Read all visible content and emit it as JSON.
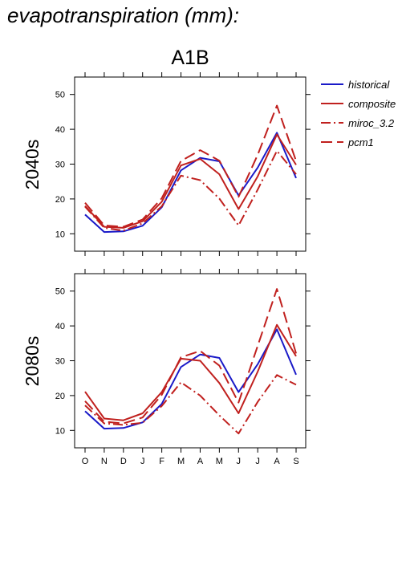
{
  "title": "evapotranspiration (mm):",
  "chart_data": {
    "type": "line",
    "scenario": "A1B",
    "categories": [
      "O",
      "N",
      "D",
      "J",
      "F",
      "M",
      "A",
      "M",
      "J",
      "J",
      "A",
      "S"
    ],
    "ylim": [
      5,
      55
    ],
    "yticks": [
      10,
      20,
      30,
      40,
      50
    ],
    "legend_position": "top-right",
    "series_styles": [
      {
        "name": "historical",
        "color": "#1a1ac8",
        "dash": "none"
      },
      {
        "name": "composite",
        "color": "#c0201e",
        "dash": "none"
      },
      {
        "name": "miroc_3.2",
        "color": "#c0201e",
        "dash": "12,4,2,4"
      },
      {
        "name": "pcm1",
        "color": "#c0201e",
        "dash": "14,6"
      }
    ],
    "panels": [
      {
        "label": "2040s",
        "series": [
          {
            "name": "historical",
            "values": [
              15.5,
              10.5,
              10.7,
              12.3,
              17.6,
              28.2,
              31.8,
              30.8,
              21.0,
              29.0,
              39.0,
              26.0
            ]
          },
          {
            "name": "composite",
            "values": [
              18.0,
              12.0,
              11.7,
              13.6,
              19.2,
              29.6,
              31.5,
              27.1,
              17.1,
              26.5,
              38.5,
              29.8
            ]
          },
          {
            "name": "miroc_3.2",
            "values": [
              17.8,
              11.7,
              10.9,
              13.0,
              17.9,
              26.7,
              25.4,
              20.1,
              12.4,
              22.7,
              33.8,
              27.1
            ]
          },
          {
            "name": "pcm1",
            "values": [
              18.9,
              12.4,
              12.0,
              14.1,
              20.2,
              30.9,
              34.0,
              31.0,
              20.6,
              32.7,
              46.8,
              30.9
            ]
          }
        ]
      },
      {
        "label": "2080s",
        "series": [
          {
            "name": "historical",
            "values": [
              15.5,
              10.5,
              10.7,
              12.3,
              17.6,
              28.2,
              31.8,
              30.8,
              21.0,
              29.0,
              39.0,
              26.0
            ]
          },
          {
            "name": "composite",
            "values": [
              21.1,
              13.4,
              12.9,
              14.9,
              21.0,
              30.6,
              30.0,
              23.6,
              14.9,
              26.9,
              40.3,
              31.3
            ]
          },
          {
            "name": "miroc_3.2",
            "values": [
              17.2,
              12.0,
              11.6,
              12.2,
              17.0,
              23.8,
              20.0,
              14.3,
              9.1,
              18.2,
              25.9,
              23.1
            ]
          },
          {
            "name": "pcm1",
            "values": [
              18.4,
              12.5,
              12.0,
              13.7,
              20.2,
              31.0,
              32.8,
              28.6,
              18.0,
              34.3,
              50.6,
              32.1
            ]
          }
        ]
      }
    ]
  }
}
